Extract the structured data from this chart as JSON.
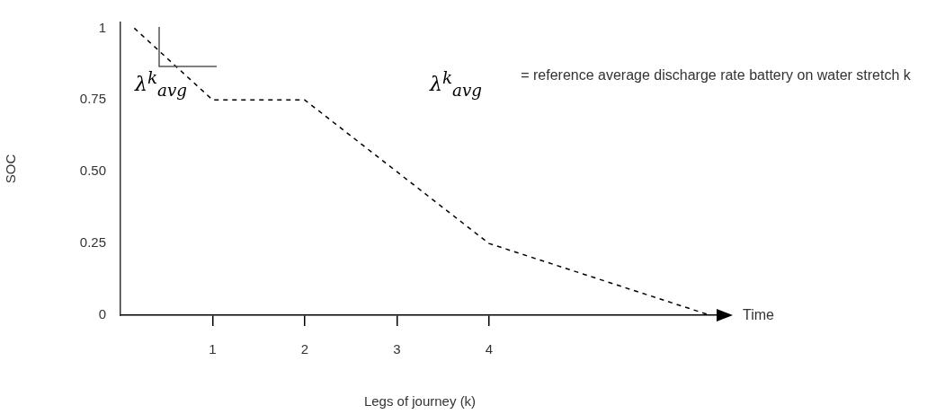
{
  "chart_data": {
    "type": "line",
    "xlabel": "Legs of journey (k)",
    "ylabel": "SOC",
    "x": [
      0.15,
      1,
      2,
      3,
      4,
      6.4
    ],
    "series": [
      {
        "color": "#000000",
        "values": [
          1,
          0.75,
          0.75,
          0.5,
          0.25,
          0
        ]
      }
    ],
    "xlim": [
      0,
      6.5
    ],
    "xticks": [
      1,
      2,
      3,
      4
    ],
    "ylim": [
      0,
      1.02
    ],
    "yticks": [
      0,
      0.25,
      {
        "value": 0.5,
        "label": "0.50"
      },
      0.75,
      1
    ],
    "annotations": [
      "λ$^{k}$$_{avg}$",
      "λ$^{k}$$_{avg}$",
      "= reference average discharge rate battery on water stretch k",
      "Time"
    ],
    "grid": false,
    "legend": false,
    "marker": "none",
    "line_style": "dashed"
  }
}
